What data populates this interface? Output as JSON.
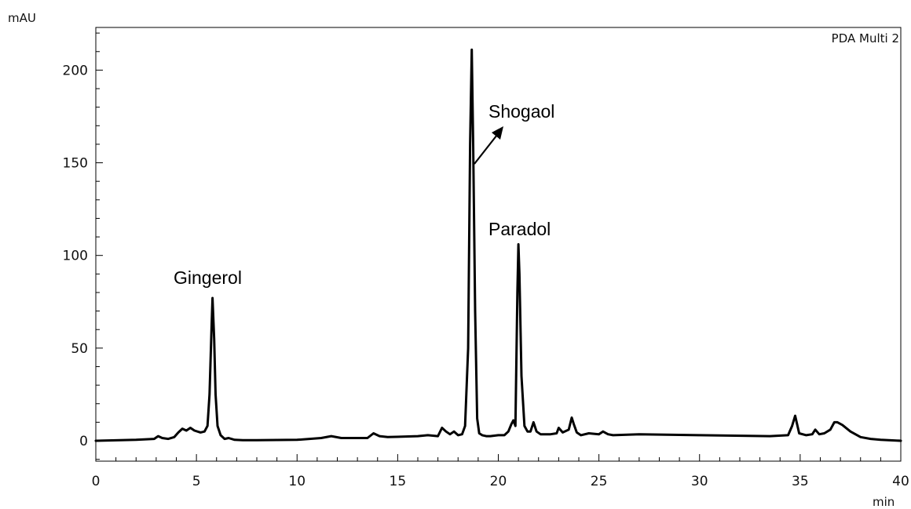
{
  "chart_data": {
    "type": "line",
    "title": "",
    "detector": "PDA Multi 2",
    "xlabel": "min",
    "ylabel": "mAU",
    "xlim": [
      0,
      40
    ],
    "ylim": [
      -12,
      225
    ],
    "x_ticks": [
      0,
      5,
      10,
      15,
      20,
      25,
      30,
      35,
      40
    ],
    "y_ticks": [
      0,
      50,
      100,
      150,
      200
    ],
    "grid": false,
    "legend": "none",
    "line_color": "#000000",
    "peaks": [
      {
        "name": "Gingerol",
        "rt": 5.8,
        "height": 77
      },
      {
        "name": "Shogaol",
        "rt": 18.7,
        "height": 211
      },
      {
        "name": "Paradol",
        "rt": 21.0,
        "height": 106
      }
    ],
    "series": [
      {
        "x": [
          0,
          2,
          2.9,
          3.1,
          3.3,
          3.6,
          3.9,
          4.1,
          4.3,
          4.5,
          4.7,
          4.9,
          5.2,
          5.4,
          5.55,
          5.65,
          5.75,
          5.8,
          5.88,
          5.95,
          6.05,
          6.2,
          6.4,
          6.6,
          6.9,
          7.3,
          8,
          10,
          11.2,
          11.7,
          12.2,
          13.5,
          13.8,
          14.1,
          14.5,
          16,
          16.5,
          17.0,
          17.2,
          17.4,
          17.6,
          17.8,
          18.0,
          18.2,
          18.35,
          18.5,
          18.6,
          18.68,
          18.75,
          18.85,
          18.95,
          19.05,
          19.2,
          19.4,
          19.6,
          20.0,
          20.3,
          20.5,
          20.65,
          20.75,
          20.85,
          20.95,
          21.0,
          21.05,
          21.15,
          21.3,
          21.45,
          21.6,
          21.75,
          21.9,
          22.1,
          22.6,
          22.9,
          23.0,
          23.2,
          23.5,
          23.65,
          23.75,
          23.9,
          24.1,
          24.5,
          25.0,
          25.2,
          25.45,
          25.7,
          27,
          30,
          33.5,
          34.4,
          34.6,
          34.75,
          34.95,
          35.3,
          35.6,
          35.75,
          35.95,
          36.2,
          36.5,
          36.7,
          36.85,
          37.1,
          37.5,
          38,
          38.5,
          39,
          40
        ],
        "y": [
          0,
          0.5,
          1,
          2.5,
          1.5,
          1,
          2,
          4.5,
          6.5,
          5.5,
          7,
          5.5,
          4.5,
          5,
          8,
          25,
          60,
          77,
          55,
          25,
          8,
          3,
          1,
          1.5,
          0.5,
          0.3,
          0.3,
          0.5,
          1.5,
          2.5,
          1.5,
          1.5,
          4,
          2.5,
          2,
          2.5,
          3,
          2.5,
          7,
          5,
          3.5,
          5,
          3,
          3.5,
          8,
          50,
          160,
          211,
          160,
          70,
          12,
          4,
          3,
          2.5,
          2.5,
          3,
          3,
          5,
          9,
          11,
          8,
          80,
          106,
          90,
          35,
          8,
          5,
          5,
          10,
          5,
          3.5,
          3.5,
          4,
          7,
          4.5,
          6,
          12.5,
          9,
          4.5,
          3,
          4,
          3.5,
          5,
          3.5,
          3,
          3.5,
          3,
          2.5,
          3,
          8,
          13.5,
          4,
          3,
          3.5,
          6,
          3.5,
          4,
          6,
          10,
          10,
          8.5,
          5,
          2,
          1,
          0.5,
          0
        ]
      }
    ]
  }
}
